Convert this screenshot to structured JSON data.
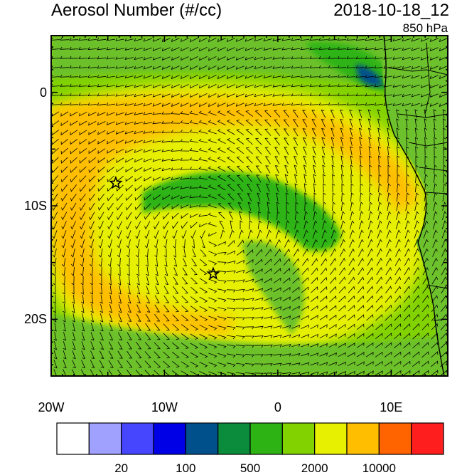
{
  "title": {
    "left": "Aerosol Number (#/cc)",
    "right": "2018-10-18_12"
  },
  "level": "850 hPa",
  "axes": {
    "lat_labels": [
      {
        "text": "0",
        "value": 0
      },
      {
        "text": "10S",
        "value": -10
      },
      {
        "text": "20S",
        "value": -20
      }
    ],
    "lon_labels": [
      {
        "text": "20W",
        "value": -20
      },
      {
        "text": "10W",
        "value": -10
      },
      {
        "text": "0",
        "value": 0
      },
      {
        "text": "10E",
        "value": 10
      }
    ],
    "lon_range": [
      -20,
      15
    ],
    "lat_range": [
      -25,
      5
    ]
  },
  "colorbar": {
    "colors": [
      "#ffffff",
      "#a0a0ff",
      "#4646ff",
      "#0000e6",
      "#00508c",
      "#0a8c3c",
      "#2db414",
      "#82d200",
      "#e6f000",
      "#ffbe00",
      "#ff6400",
      "#ff1e1e"
    ],
    "labels": [
      {
        "text": "20",
        "boundary": 2
      },
      {
        "text": "100",
        "boundary": 4
      },
      {
        "text": "500",
        "boundary": 6
      },
      {
        "text": "2000",
        "boundary": 8
      },
      {
        "text": "10000",
        "boundary": 10
      }
    ]
  },
  "markers": [
    {
      "name": "star-marker",
      "lon": -14.3,
      "lat": -8.0
    },
    {
      "name": "star-marker",
      "lon": -5.7,
      "lat": -16.0
    }
  ],
  "field_colors": {
    "land": "#6cc12c",
    "ocean_green": "#82d200",
    "yellow": "#e6f000",
    "orange": "#ffbe00",
    "dark_green": "#2db414",
    "blue_patch": "#00508c"
  }
}
